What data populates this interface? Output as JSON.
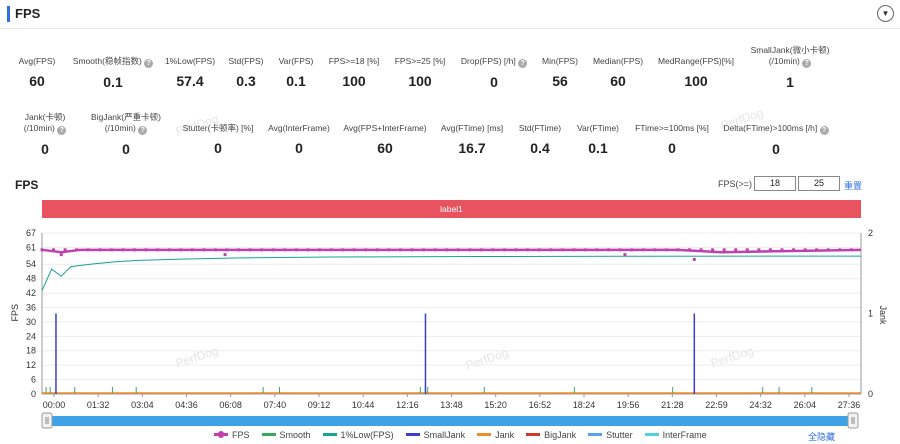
{
  "header": {
    "title": "FPS"
  },
  "metrics_row1": [
    {
      "label": "Avg(FPS)",
      "value": "60"
    },
    {
      "label": "Smooth(稳帧指数)",
      "value": "0.1",
      "help": true
    },
    {
      "label": "1%Low(FPS)",
      "value": "57.4"
    },
    {
      "label": "Std(FPS)",
      "value": "0.3"
    },
    {
      "label": "Var(FPS)",
      "value": "0.1"
    },
    {
      "label": "FPS>=18 [%]",
      "value": "100"
    },
    {
      "label": "FPS>=25 [%]",
      "value": "100"
    },
    {
      "label": "Drop(FPS) [/h]",
      "value": "0",
      "help": true
    },
    {
      "label": "Min(FPS)",
      "value": "56"
    },
    {
      "label": "Median(FPS)",
      "value": "60"
    },
    {
      "label": "MedRange(FPS)[%]",
      "value": "100"
    },
    {
      "label": "SmallJank(微小卡顿)",
      "label2": "(/10min)",
      "value": "1",
      "help": true
    }
  ],
  "metrics_row2": [
    {
      "label": "Jank(卡顿)",
      "label2": "(/10min)",
      "value": "0",
      "help": true
    },
    {
      "label": "BigJank(严重卡顿)",
      "label2": "(/10min)",
      "value": "0",
      "help": true
    },
    {
      "label": "Stutter(卡顿率) [%]",
      "value": "0"
    },
    {
      "label": "Avg(InterFrame)",
      "value": "0"
    },
    {
      "label": "Avg(FPS+InterFrame)",
      "value": "60"
    },
    {
      "label": "Avg(FTime) [ms]",
      "value": "16.7"
    },
    {
      "label": "Std(FTime)",
      "value": "0.4"
    },
    {
      "label": "Var(FTime)",
      "value": "0.1"
    },
    {
      "label": "FTime>=100ms [%]",
      "value": "0"
    },
    {
      "label": "Delta(FTime)>100ms [/h]",
      "value": "0",
      "help": true
    }
  ],
  "chart_header": {
    "title": "FPS",
    "fps_label": "FPS(>=)",
    "fps_threshold_1": "18",
    "fps_threshold_2": "25",
    "reset_label": "重置",
    "band_label": "label1"
  },
  "watermark": "PerfDog",
  "colors": {
    "fps": "#c040b0",
    "smooth": "#3aa85a",
    "low1": "#17a398",
    "smalljank": "#3d3dd0",
    "jank": "#f08c28",
    "bigjank": "#d03a2a",
    "stutter": "#5aa0f0",
    "interframe": "#4fd0e0",
    "band": "#e8535f",
    "accent": "#2f6fe0"
  },
  "chart_data": {
    "type": "line",
    "y_left_label": "FPS",
    "y_right_label": "Jank",
    "y_left_ticks": [
      0,
      6,
      12,
      18,
      24,
      30,
      36,
      42,
      48,
      54,
      61,
      67
    ],
    "y_left_range": [
      0,
      67
    ],
    "y_right_ticks": [
      0,
      1,
      2
    ],
    "y_right_range": [
      0,
      2
    ],
    "x_range_seconds": [
      0,
      1700
    ],
    "x_ticks": [
      "00:00",
      "01:32",
      "03:04",
      "04:36",
      "06:08",
      "07:40",
      "09:12",
      "10:44",
      "12:16",
      "13:48",
      "15:20",
      "16:52",
      "18:24",
      "19:56",
      "21:28",
      "22:59",
      "24:32",
      "26:04",
      "27:36"
    ],
    "grid": true,
    "series": [
      {
        "name": "FPS",
        "x": [
          0,
          40,
          80,
          270,
          700,
          1050,
          1150,
          1320,
          1410,
          1700
        ],
        "values": [
          60,
          59,
          60,
          60,
          60,
          60,
          60,
          60,
          59,
          60
        ]
      },
      {
        "name": "1%Low(FPS)",
        "x": [
          0,
          20,
          40,
          50,
          60,
          100,
          150,
          200,
          300,
          400,
          600,
          900,
          1200,
          1500,
          1700
        ],
        "values": [
          43,
          52,
          49,
          51,
          53,
          54,
          55,
          55.6,
          56.2,
          56.6,
          57,
          57.2,
          57.3,
          57.4,
          57.4
        ]
      },
      {
        "name": "SmallJank",
        "x": [
          29,
          796,
          1354
        ],
        "values": [
          1,
          1,
          1
        ]
      }
    ],
    "legend": [
      "FPS",
      "Smooth",
      "1%Low(FPS)",
      "SmallJank",
      "Jank",
      "BigJank",
      "Stutter",
      "InterFrame"
    ],
    "legend_position": "bottom"
  },
  "legend_hide_all": "全隐藏"
}
